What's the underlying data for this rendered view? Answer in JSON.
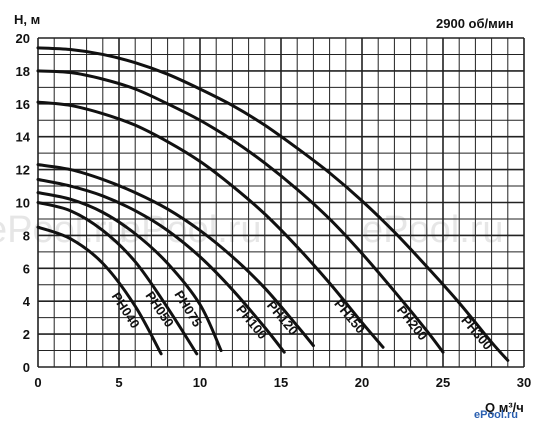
{
  "speed_label": "2900 об/мин",
  "watermark": "ePool.ru",
  "watermark_corner": "ePool.ru",
  "chart_data": {
    "type": "line",
    "title": "",
    "xlabel": "Q м³/ч",
    "ylabel": "H, м",
    "xlim": [
      0,
      30
    ],
    "ylim": [
      0,
      20
    ],
    "x_ticks": [
      0,
      5,
      10,
      15,
      20,
      25,
      30
    ],
    "y_ticks": [
      0,
      2,
      4,
      6,
      8,
      10,
      12,
      14,
      16,
      18,
      20
    ],
    "grid": true,
    "series": [
      {
        "name": "PH040",
        "points": [
          [
            0,
            8.5
          ],
          [
            2,
            7.8
          ],
          [
            4,
            6.3
          ],
          [
            6,
            3.7
          ],
          [
            7.6,
            0.8
          ]
        ]
      },
      {
        "name": "PH050",
        "points": [
          [
            0,
            10.0
          ],
          [
            2,
            9.5
          ],
          [
            4,
            8.3
          ],
          [
            6,
            6.4
          ],
          [
            8,
            3.6
          ],
          [
            9.8,
            0.8
          ]
        ]
      },
      {
        "name": "PH075",
        "points": [
          [
            0,
            10.6
          ],
          [
            2,
            10.2
          ],
          [
            4,
            9.4
          ],
          [
            6,
            8.1
          ],
          [
            8,
            6.3
          ],
          [
            10,
            3.8
          ],
          [
            11.3,
            1.0
          ]
        ]
      },
      {
        "name": "PH100",
        "points": [
          [
            0,
            11.4
          ],
          [
            2,
            11.0
          ],
          [
            4,
            10.4
          ],
          [
            6,
            9.5
          ],
          [
            8,
            8.3
          ],
          [
            10,
            6.7
          ],
          [
            12,
            4.7
          ],
          [
            14,
            2.4
          ],
          [
            15.2,
            0.9
          ]
        ]
      },
      {
        "name": "PH120",
        "points": [
          [
            0,
            12.3
          ],
          [
            2,
            12.0
          ],
          [
            4,
            11.4
          ],
          [
            6,
            10.6
          ],
          [
            8,
            9.6
          ],
          [
            10,
            8.3
          ],
          [
            12,
            6.7
          ],
          [
            14,
            4.8
          ],
          [
            16,
            2.5
          ],
          [
            17,
            1.3
          ]
        ]
      },
      {
        "name": "PH150",
        "points": [
          [
            0,
            16.1
          ],
          [
            2,
            15.9
          ],
          [
            4,
            15.4
          ],
          [
            6,
            14.7
          ],
          [
            8,
            13.7
          ],
          [
            10,
            12.5
          ],
          [
            12,
            11.0
          ],
          [
            14,
            9.3
          ],
          [
            16,
            7.3
          ],
          [
            18,
            5.1
          ],
          [
            20,
            2.7
          ],
          [
            21.3,
            1.2
          ]
        ]
      },
      {
        "name": "PH200",
        "points": [
          [
            0,
            18.0
          ],
          [
            2,
            17.9
          ],
          [
            4,
            17.5
          ],
          [
            6,
            16.9
          ],
          [
            8,
            16.0
          ],
          [
            10,
            15.0
          ],
          [
            12,
            13.8
          ],
          [
            14,
            12.4
          ],
          [
            16,
            10.8
          ],
          [
            18,
            9.0
          ],
          [
            20,
            6.9
          ],
          [
            22,
            4.6
          ],
          [
            24,
            2.2
          ],
          [
            25,
            0.9
          ]
        ]
      },
      {
        "name": "PH300",
        "points": [
          [
            0,
            19.4
          ],
          [
            2,
            19.3
          ],
          [
            4,
            19.0
          ],
          [
            6,
            18.5
          ],
          [
            8,
            17.8
          ],
          [
            10,
            16.9
          ],
          [
            12,
            15.9
          ],
          [
            14,
            14.7
          ],
          [
            16,
            13.3
          ],
          [
            18,
            11.8
          ],
          [
            20,
            10.1
          ],
          [
            22,
            8.2
          ],
          [
            24,
            6.1
          ],
          [
            26,
            3.9
          ],
          [
            28,
            1.5
          ],
          [
            29,
            0.4
          ]
        ]
      }
    ]
  }
}
